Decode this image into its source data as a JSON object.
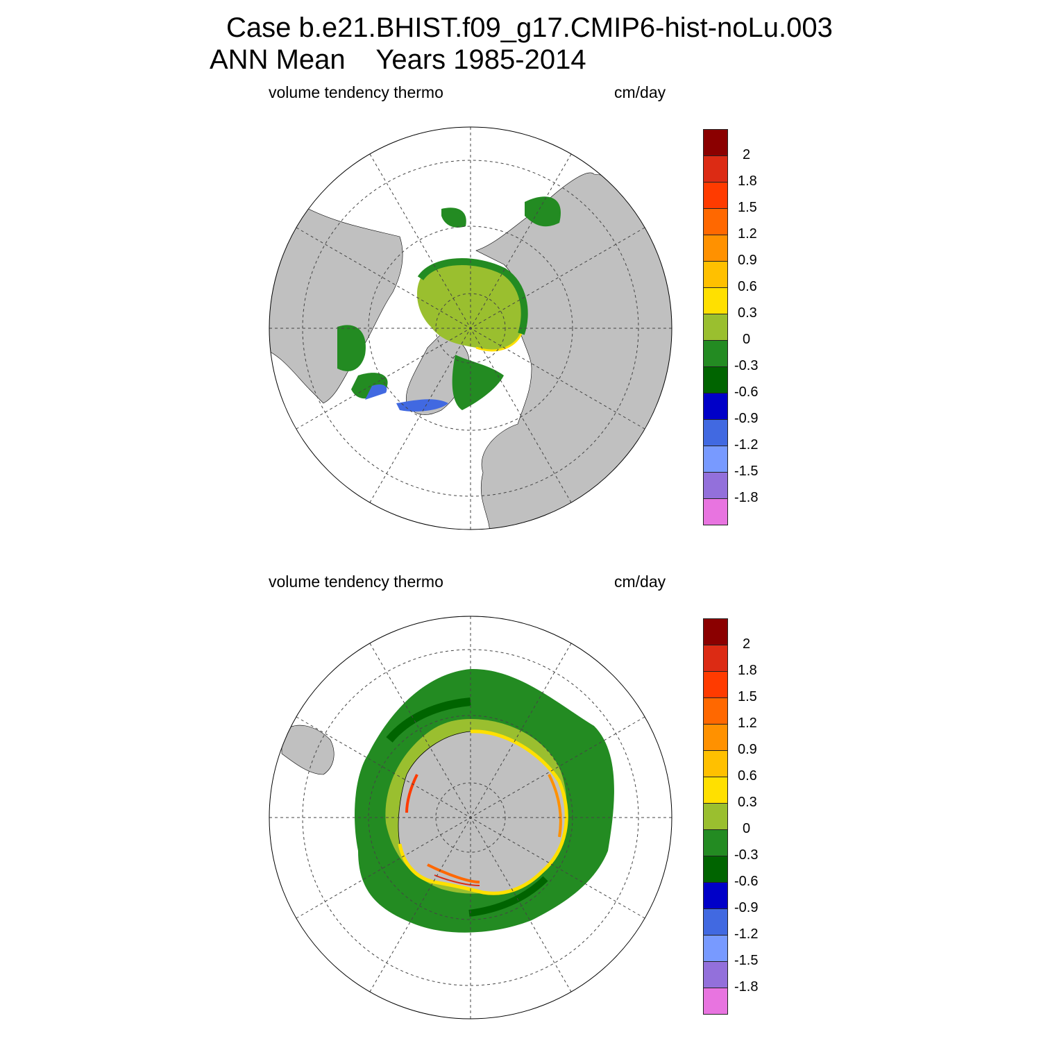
{
  "title": {
    "line1": "Case b.e21.BHIST.f09_g17.CMIP6-hist-noLu.003",
    "line2": "ANN Mean    Years 1985-2014"
  },
  "panels": [
    {
      "id": "north",
      "field_label": "volume tendency thermo",
      "units_label": "cm/day"
    },
    {
      "id": "south",
      "field_label": "volume tendency thermo",
      "units_label": "cm/day"
    }
  ],
  "colorbar": {
    "colors_top_to_bottom": [
      "#8b0000",
      "#dc2b14",
      "#ff3b00",
      "#ff6800",
      "#ff9100",
      "#ffc000",
      "#ffe000",
      "#9abf2f",
      "#238b22",
      "#006400",
      "#0000c8",
      "#4169e1",
      "#789aff",
      "#9370db",
      "#e874e0"
    ],
    "labels_top_to_bottom": [
      "2",
      "1.8",
      "1.5",
      "1.2",
      "0.9",
      "0.6",
      "0.3",
      "0",
      "-0.3",
      "-0.6",
      "-0.9",
      "-1.2",
      "-1.5",
      "-1.8"
    ]
  },
  "map_colors": {
    "land": "#c0c0c0",
    "ocean": "#ffffff"
  }
}
